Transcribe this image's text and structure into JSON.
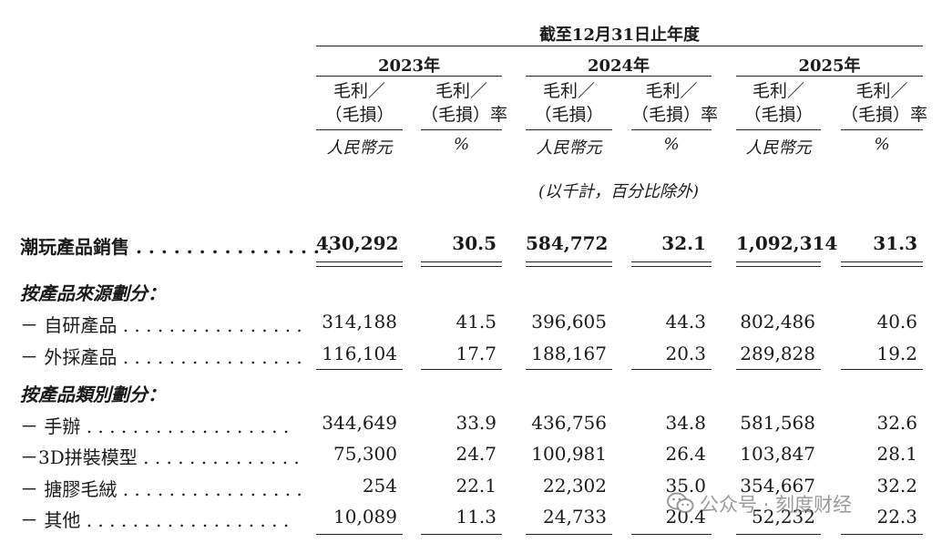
{
  "header": {
    "period": "截至12月31日止年度",
    "years": [
      "2023年",
      "2024年",
      "2025年"
    ],
    "col_gp": "毛利／\n（毛損）",
    "col_gp_l1": "毛利／",
    "col_gp_l2": "（毛損）",
    "col_margin_l1": "毛利／",
    "col_margin_l2": "（毛損）率",
    "unit_rmb": "人民幣元",
    "unit_pct": "%",
    "note": "(以千計，百分比除外)"
  },
  "rows": [
    {
      "label": "潮玩產品銷售 . . . . . . . . . . . . . . . .",
      "values": [
        "430,292",
        "30.5",
        "584,772",
        "32.1",
        "1,092,314",
        "31.3"
      ]
    },
    {
      "label": "按產品來源劃分："
    },
    {
      "label": "－ 自研產品 . . . . . . . . . . . . . . . .",
      "values": [
        "314,188",
        "41.5",
        "396,605",
        "44.3",
        "802,486",
        "40.6"
      ]
    },
    {
      "label": "－ 外採產品 . . . . . . . . . . . . . . . .",
      "values": [
        "116,104",
        "17.7",
        "188,167",
        "20.3",
        "289,828",
        "19.2"
      ]
    },
    {
      "label": "按產品類別劃分："
    },
    {
      "label": "－ 手辦 . . . . . . . . . . . . . . . . . .",
      "values": [
        "344,649",
        "33.9",
        "436,756",
        "34.8",
        "581,568",
        "32.6"
      ]
    },
    {
      "label": "－3D拼裝模型 . . . . . . . . . . . . . .",
      "values": [
        "75,300",
        "24.7",
        "100,981",
        "26.4",
        "103,847",
        "28.1"
      ]
    },
    {
      "label": "－ 搪膠毛絨 . . . . . . . . . . . . . . . .",
      "values": [
        "254",
        "22.1",
        "22,302",
        "35.0",
        "354,667",
        "32.2"
      ]
    },
    {
      "label": "－ 其他 . . . . . . . . . . . . . . . . . .",
      "values": [
        "10,089",
        "11.3",
        "24,733",
        "20.4",
        "52,232",
        "22.3"
      ]
    }
  ],
  "watermark": {
    "text": "公众号 · 刻度财经",
    "icon": "wechat-icon"
  }
}
